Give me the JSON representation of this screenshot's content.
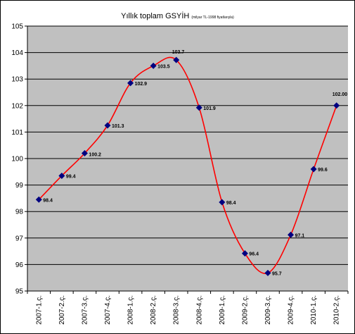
{
  "chart_data": {
    "type": "line",
    "title": "Yıllık toplam GSYİH",
    "subtitle": "(milyar TL-1998 fiyatlarıyla)",
    "xlabel": "",
    "ylabel": "",
    "ylim": [
      95,
      105
    ],
    "yticks": [
      95,
      96,
      97,
      98,
      99,
      100,
      101,
      102,
      103,
      104,
      105
    ],
    "grid": true,
    "categories": [
      "2007-1.ç.",
      "2007-2.ç.",
      "2007-3.ç.",
      "2007-4.ç.",
      "2008-1.ç.",
      "2008-2.ç.",
      "2008-3.ç.",
      "2008-4.ç.",
      "2009-1.ç.",
      "2009-2.ç.",
      "2009-3.ç.",
      "2009-4.ç.",
      "2010-1.ç.",
      "2010-2.ç."
    ],
    "values": [
      98.45,
      99.35,
      100.2,
      101.25,
      102.85,
      103.5,
      103.72,
      101.92,
      98.35,
      96.42,
      95.68,
      97.12,
      99.6,
      102.0
    ],
    "data_labels": [
      "98.4",
      "99.4",
      "100.2",
      "101.3",
      "102.9",
      "103.5",
      "103.7",
      "101.9",
      "98.4",
      "96.4",
      "95.7",
      "97.1",
      "99.6",
      "102.00"
    ],
    "colors": {
      "line": "#ff0000",
      "marker": "#000080",
      "plot_bg": "#c0c0c0",
      "grid": "#000000"
    }
  }
}
